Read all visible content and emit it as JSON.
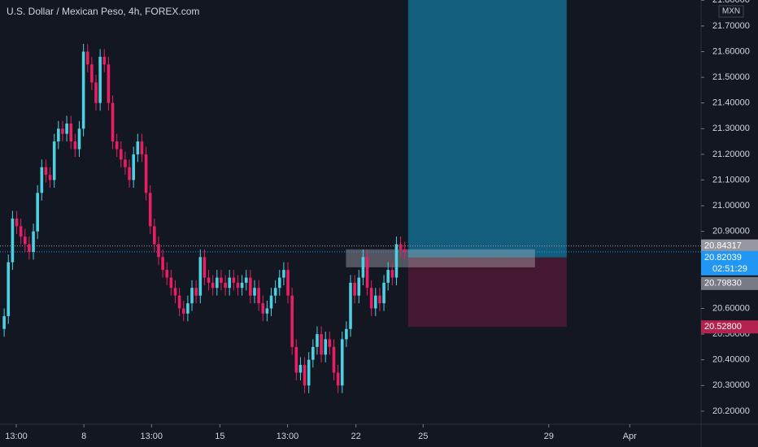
{
  "chart_data": {
    "type": "candlestick",
    "title": "U.S. Dollar / Mexican Peso, 4h, FOREX.com",
    "currency": "MXN",
    "up_color": "#4dd0e1",
    "down_color": "#e91e63",
    "open": [
      20.52,
      20.57,
      20.78,
      20.95,
      20.92,
      20.88,
      20.85,
      20.82,
      20.9,
      21.05,
      21.15,
      21.12,
      21.1,
      21.25,
      21.3,
      21.28,
      21.32,
      21.25,
      21.22,
      21.3,
      21.6,
      21.55,
      21.48,
      21.4,
      21.58,
      21.55,
      21.4,
      21.25,
      21.22,
      21.18,
      21.15,
      21.1,
      21.2,
      21.25,
      21.2,
      21.05,
      20.92,
      20.85,
      20.8,
      20.75,
      20.72,
      20.68,
      20.65,
      20.6,
      20.58,
      20.62,
      20.68,
      20.65,
      20.8,
      20.72,
      20.7,
      20.68,
      20.72,
      20.7,
      20.68,
      20.72,
      20.7,
      20.68,
      20.7,
      20.72,
      20.65,
      20.68,
      20.62,
      20.58,
      20.6,
      20.65,
      20.68,
      20.72,
      20.75,
      20.65,
      20.45,
      20.35,
      20.38,
      20.3,
      20.4,
      20.45,
      20.5,
      20.42,
      20.48,
      20.45,
      20.35,
      20.3,
      20.48,
      20.52,
      20.7,
      20.65,
      20.72,
      20.8,
      20.68,
      20.6,
      20.65,
      20.62,
      20.7,
      20.75,
      20.72,
      20.85,
      20.83
    ],
    "high": [
      20.6,
      20.81,
      20.98,
      20.98,
      20.95,
      20.91,
      20.88,
      20.93,
      21.08,
      21.18,
      21.18,
      21.15,
      21.28,
      21.33,
      21.33,
      21.35,
      21.35,
      21.28,
      21.33,
      21.63,
      21.63,
      21.58,
      21.51,
      21.61,
      21.61,
      21.58,
      21.43,
      21.28,
      21.25,
      21.21,
      21.18,
      21.23,
      21.28,
      21.28,
      21.23,
      21.08,
      20.95,
      20.88,
      20.83,
      20.78,
      20.75,
      20.71,
      20.68,
      20.63,
      20.65,
      20.71,
      20.71,
      20.83,
      20.83,
      20.75,
      20.73,
      20.75,
      20.75,
      20.73,
      20.75,
      20.75,
      20.73,
      20.73,
      20.75,
      20.75,
      20.71,
      20.71,
      20.65,
      20.63,
      20.68,
      20.71,
      20.75,
      20.78,
      20.78,
      20.68,
      20.48,
      20.41,
      20.41,
      20.43,
      20.48,
      20.53,
      20.53,
      20.51,
      20.51,
      20.48,
      20.38,
      20.51,
      20.55,
      20.73,
      20.73,
      20.75,
      20.83,
      20.83,
      20.71,
      20.68,
      20.68,
      20.73,
      20.78,
      20.78,
      20.88,
      20.88,
      20.86
    ],
    "low": [
      20.49,
      20.54,
      20.75,
      20.89,
      20.85,
      20.82,
      20.79,
      20.79,
      20.87,
      21.02,
      21.09,
      21.07,
      21.07,
      21.22,
      21.25,
      21.25,
      21.22,
      21.19,
      21.19,
      21.27,
      21.52,
      21.45,
      21.37,
      21.37,
      21.52,
      21.37,
      21.22,
      21.19,
      21.15,
      21.12,
      21.07,
      21.07,
      21.17,
      21.17,
      21.02,
      20.89,
      20.82,
      20.77,
      20.72,
      20.69,
      20.65,
      20.62,
      20.57,
      20.55,
      20.55,
      20.59,
      20.62,
      20.62,
      20.69,
      20.67,
      20.65,
      20.65,
      20.67,
      20.65,
      20.65,
      20.67,
      20.65,
      20.65,
      20.67,
      20.62,
      20.62,
      20.59,
      20.55,
      20.55,
      20.57,
      20.62,
      20.65,
      20.69,
      20.62,
      20.42,
      20.32,
      20.32,
      20.27,
      20.27,
      20.37,
      20.42,
      20.39,
      20.39,
      20.42,
      20.32,
      20.27,
      20.27,
      20.45,
      20.49,
      20.62,
      20.62,
      20.69,
      20.65,
      20.57,
      20.57,
      20.59,
      20.59,
      20.67,
      20.69,
      20.69,
      20.8,
      20.79
    ],
    "close": [
      20.57,
      20.78,
      20.95,
      20.92,
      20.88,
      20.85,
      20.82,
      20.9,
      21.05,
      21.15,
      21.12,
      21.1,
      21.25,
      21.3,
      21.28,
      21.32,
      21.25,
      21.22,
      21.3,
      21.6,
      21.55,
      21.48,
      21.4,
      21.58,
      21.55,
      21.4,
      21.25,
      21.22,
      21.18,
      21.15,
      21.1,
      21.2,
      21.25,
      21.2,
      21.05,
      20.92,
      20.85,
      20.8,
      20.75,
      20.72,
      20.68,
      20.65,
      20.6,
      20.58,
      20.62,
      20.68,
      20.65,
      20.8,
      20.72,
      20.7,
      20.68,
      20.72,
      20.7,
      20.68,
      20.72,
      20.7,
      20.68,
      20.7,
      20.72,
      20.65,
      20.68,
      20.62,
      20.58,
      20.6,
      20.65,
      20.68,
      20.72,
      20.75,
      20.65,
      20.45,
      20.35,
      20.38,
      20.3,
      20.4,
      20.45,
      20.5,
      20.42,
      20.48,
      20.45,
      20.35,
      20.3,
      20.48,
      20.52,
      20.7,
      20.65,
      20.72,
      20.8,
      20.68,
      20.6,
      20.65,
      20.62,
      20.7,
      20.75,
      20.72,
      20.85,
      20.83,
      20.82
    ],
    "xlim": [
      -1,
      167
    ],
    "xticks": [
      {
        "value": 2.9,
        "label": "13:00"
      },
      {
        "value": 19.1,
        "label": "8"
      },
      {
        "value": 35.3,
        "label": "13:00"
      },
      {
        "value": 51.7,
        "label": "15"
      },
      {
        "value": 67.9,
        "label": "13:00"
      },
      {
        "value": 84.3,
        "label": "22"
      },
      {
        "value": 100.4,
        "label": "25"
      },
      {
        "value": 130.5,
        "label": "29"
      },
      {
        "value": 149.9,
        "label": "Apr"
      }
    ],
    "ylim": [
      20.149,
      21.801
    ],
    "yticks": [
      {
        "value": 20.2,
        "label": "20.20000"
      },
      {
        "value": 20.3,
        "label": "20.30000"
      },
      {
        "value": 20.4,
        "label": "20.40000"
      },
      {
        "value": 20.5,
        "label": "20.50000"
      },
      {
        "value": 20.6,
        "label": "20.60000"
      },
      {
        "value": 20.9,
        "label": "20.90000"
      },
      {
        "value": 21.0,
        "label": "21.00000"
      },
      {
        "value": 21.1,
        "label": "21.10000"
      },
      {
        "value": 21.2,
        "label": "21.20000"
      },
      {
        "value": 21.3,
        "label": "21.30000"
      },
      {
        "value": 21.4,
        "label": "21.40000"
      },
      {
        "value": 21.5,
        "label": "21.50000"
      },
      {
        "value": 21.6,
        "label": "21.60000"
      },
      {
        "value": 21.7,
        "label": "21.70000"
      },
      {
        "value": 21.8,
        "label": "21.80000"
      }
    ],
    "high_line": {
      "value": 20.84317,
      "label": "20.84317",
      "color": "#9598a1"
    },
    "last_price": {
      "value": 20.82039,
      "label": "20.82039",
      "countdown": "02:51:29",
      "color": "#2196f3"
    },
    "position": {
      "x_range": [
        96.8,
        134.8
      ],
      "entry": {
        "value": 20.7983,
        "label": "20.79830"
      },
      "stop": {
        "value": 20.528,
        "label": "20.52800"
      },
      "target_color": "#135e7c",
      "stop_color": "#451931",
      "entry_label_color": "#787b86",
      "stop_label_color": "#b2234f"
    },
    "zone": {
      "x_range": [
        81.9,
        127.2
      ],
      "y_range": [
        20.76,
        20.83
      ]
    }
  }
}
